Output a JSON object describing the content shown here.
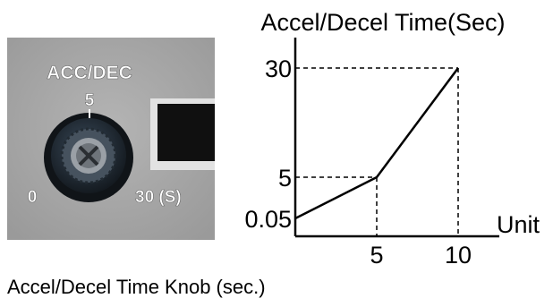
{
  "photo": {
    "knob_label": "ACC/DEC",
    "scale_top": "5",
    "scale_left": "0",
    "scale_right": "30 (S)"
  },
  "chart_data": {
    "type": "line",
    "title": "",
    "ylabel": "Accel/Decel Time(Sec)",
    "xlabel": "Unit",
    "x_ticks": [
      "5",
      "10"
    ],
    "y_ticks": [
      "0.05",
      "5",
      "30"
    ],
    "series": [
      {
        "points": [
          {
            "x": 0,
            "y": 0.05
          },
          {
            "x": 5,
            "y": 5
          },
          {
            "x": 10,
            "y": 30
          }
        ]
      }
    ],
    "reference_lines": [
      {
        "x": 5,
        "y": 5
      },
      {
        "x": 10,
        "y": 30
      }
    ],
    "grid": false,
    "colors": {
      "line": "#000000",
      "reference": "#000000"
    }
  },
  "caption": "Accel/Decel Time Knob (sec.)"
}
